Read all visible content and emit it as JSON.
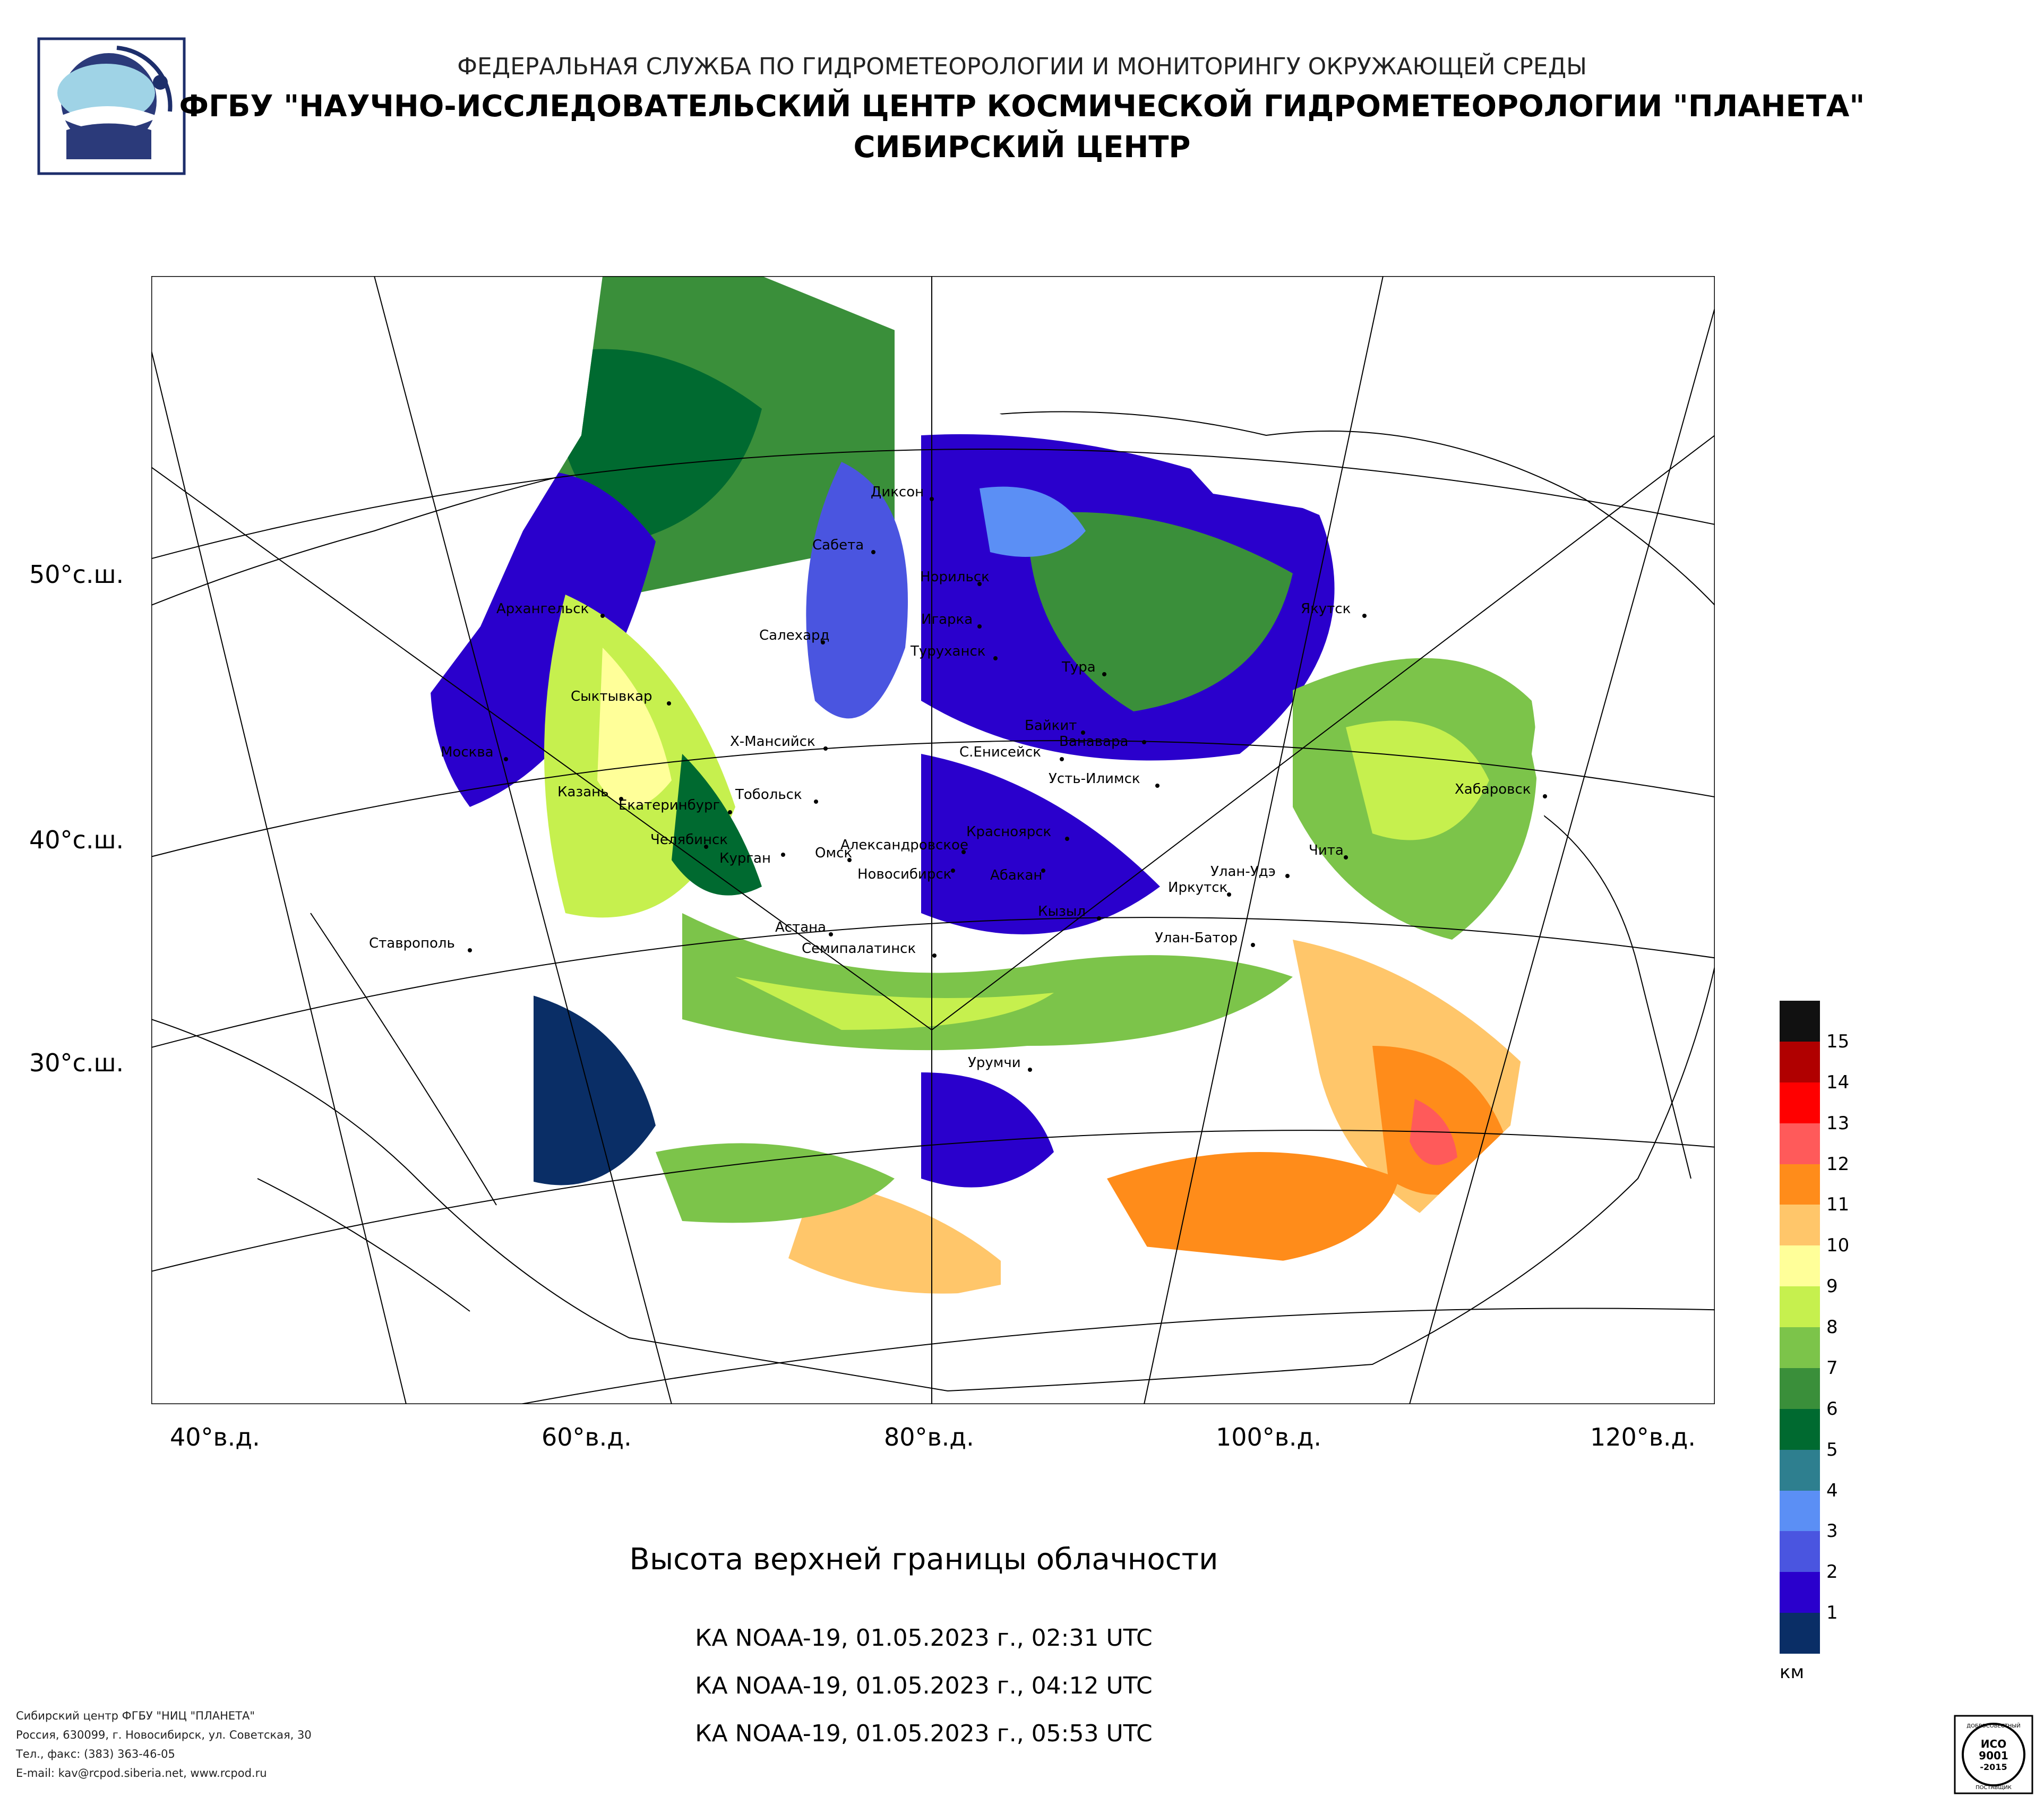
{
  "header": {
    "agency": "ФЕДЕРАЛЬНАЯ СЛУЖБА ПО ГИДРОМЕТЕОРОЛОГИИ И МОНИТОРИНГУ ОКРУЖАЮЩЕЙ СРЕДЫ",
    "institute": "ФГБУ \"НАУЧНО-ИССЛЕДОВАТЕЛЬСКИЙ ЦЕНТР КОСМИЧЕСКОЙ ГИДРОМЕТЕОРОЛОГИИ \"ПЛАНЕТА\"",
    "center": "СИБИРСКИЙ ЦЕНТР"
  },
  "axes": {
    "latitudes": [
      "50°с.ш.",
      "40°с.ш.",
      "30°с.ш."
    ],
    "longitudes": [
      "40°в.д.",
      "60°в.д.",
      "80°в.д.",
      "100°в.д.",
      "120°в.д."
    ]
  },
  "cities": [
    "Диксон",
    "Сабета",
    "Норильск",
    "Игарка",
    "Салехард",
    "Туруханск",
    "Архангельск",
    "Якутск",
    "Тура",
    "Сыктывкар",
    "Байкит",
    "Ванавара",
    "Х-Мансийск",
    "Москва",
    "С.Енисейск",
    "Усть-Илимск",
    "Хабаровск",
    "Казань",
    "Екатеринбург",
    "Тобольск",
    "Челябинск",
    "Курган",
    "Омск",
    "Красноярск",
    "Александровское",
    "Новосибирск",
    "Абакан",
    "Улан-Удэ",
    "Чита",
    "Иркутск",
    "Ставрополь",
    "Кызыл",
    "Астана",
    "Семипалатинск",
    "Улан-Батор",
    "Урумчи"
  ],
  "legend": {
    "unit": "км",
    "levels": [
      "1",
      "2",
      "3",
      "4",
      "5",
      "6",
      "7",
      "8",
      "9",
      "10",
      "11",
      "12",
      "13",
      "14",
      "15"
    ],
    "colors": [
      "#0a2e66",
      "#2a00cc",
      "#4a55e0",
      "#5b8ff5",
      "#2e7f8f",
      "#006a30",
      "#3a8f3a",
      "#7cc44a",
      "#c6f04e",
      "#ffff99",
      "#ffc66a",
      "#ff8c1a",
      "#ff5a5a",
      "#ff0000",
      "#b00000",
      "#111111"
    ]
  },
  "product": {
    "title": "Высота верхней границы облачности",
    "passes": [
      "КА NOAA-19, 01.05.2023 г., 02:31 UTC",
      "КА NOAA-19, 01.05.2023 г., 04:12 UTC",
      "КА NOAA-19, 01.05.2023 г., 05:53 UTC"
    ]
  },
  "footer": {
    "line1": "Сибирский центр ФГБУ \"НИЦ \"ПЛАНЕТА\"",
    "line2": "Россия, 630099, г. Новосибирск, ул. Советская, 30",
    "line3": "Тел., факс: (383) 363-46-05",
    "line4": "E-mail: kav@rcpod.siberia.net, www.rcpod.ru"
  },
  "cert_badge": {
    "top": "ДОБРОСОВЕСТНЫЙ",
    "line1": "ИСО",
    "line2": "9001",
    "line3": "-2015",
    "bottom": "ПОСТАВЩИК"
  }
}
